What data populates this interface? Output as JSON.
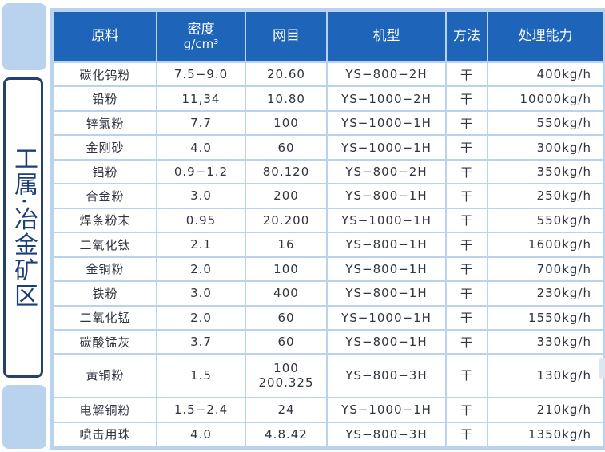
{
  "side_title": "工属·冶金矿区",
  "headers": {
    "material": "原料",
    "density_line1": "密度",
    "density_line2": "g/cm³",
    "mesh": "网目",
    "model": "机型",
    "method": "方法",
    "capacity": "处理能力"
  },
  "rows": [
    {
      "material": "碳化钨粉",
      "density": "7.5−9.0",
      "mesh": "20.60",
      "model": "YS−800−2H",
      "method": "干",
      "capacity": "400kg/h"
    },
    {
      "material": "铅粉",
      "density": "11,34",
      "mesh": "10.80",
      "model": "YS−1000−2H",
      "method": "干",
      "capacity": "10000kg/h"
    },
    {
      "material": "锌氯粉",
      "density": "7.7",
      "mesh": "100",
      "model": "YS−1000−1H",
      "method": "干",
      "capacity": "550kg/h"
    },
    {
      "material": "金刚砂",
      "density": "4.0",
      "mesh": "60",
      "model": "YS−1000−1H",
      "method": "干",
      "capacity": "300kg/h"
    },
    {
      "material": "铝粉",
      "density": "0.9−1.2",
      "mesh": "80.120",
      "model": "YS−800−2H",
      "method": "干",
      "capacity": "350kg/h"
    },
    {
      "material": "合金粉",
      "density": "3.0",
      "mesh": "200",
      "model": "YS−800−1H",
      "method": "干",
      "capacity": "250kg/h"
    },
    {
      "material": "焊条粉末",
      "density": "0.95",
      "mesh": "20.200",
      "model": "YS−1000−1H",
      "method": "干",
      "capacity": "550kg/h"
    },
    {
      "material": "二氧化钛",
      "density": "2.1",
      "mesh": "16",
      "model": "YS−800−1H",
      "method": "干",
      "capacity": "1600kg/h"
    },
    {
      "material": "金铜粉",
      "density": "2.0",
      "mesh": "100",
      "model": "YS−800−1H",
      "method": "干",
      "capacity": "700kg/h"
    },
    {
      "material": "铁粉",
      "density": "3.0",
      "mesh": "400",
      "model": "YS−800−1H",
      "method": "干",
      "capacity": "230kg/h"
    },
    {
      "material": "二氧化锰",
      "density": "2.0",
      "mesh": "60",
      "model": "YS−1000−1H",
      "method": "干",
      "capacity": "1550kg/h"
    },
    {
      "material": "碳酸锰灰",
      "density": "3.7",
      "mesh": "60",
      "model": "YS−800−1H",
      "method": "干",
      "capacity": "330kg/h"
    },
    {
      "material": "黄铜粉",
      "density": "1.5",
      "mesh": "100",
      "mesh2": "200.325",
      "model": "YS−800−3H",
      "method": "干",
      "capacity": "130kg/h"
    },
    {
      "material": "电解铜粉",
      "density": "1.5−2.4",
      "mesh": "24",
      "model": "YS−1000−1H",
      "method": "干",
      "capacity": "210kg/h"
    },
    {
      "material": "喷击用珠",
      "density": "4.0",
      "mesh": "4.8.42",
      "model": "YS−800−3H",
      "method": "干",
      "capacity": "1350kg/h"
    }
  ]
}
